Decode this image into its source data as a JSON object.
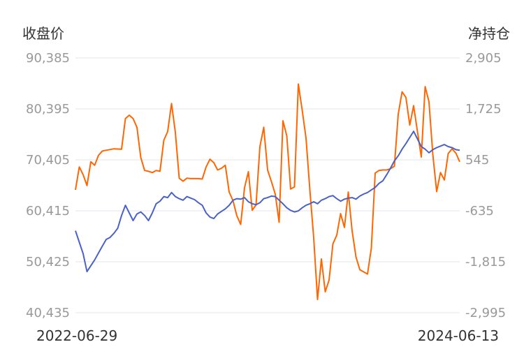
{
  "chart_data": {
    "type": "line",
    "left_axis_title": "收盘价",
    "right_axis_title": "净持仓",
    "left_ticks": [
      "90,385",
      "80,395",
      "70,405",
      "60,415",
      "50,425",
      "40,435"
    ],
    "right_ticks": [
      "2,905",
      "1,725",
      "545",
      "-635",
      "-1,815",
      "-2,995"
    ],
    "x_start_label": "2022-06-29",
    "x_end_label": "2024-06-13",
    "left_ylim": [
      40435,
      90385
    ],
    "right_ylim": [
      -2995,
      2905
    ],
    "grid": true,
    "series": [
      {
        "axis": "left",
        "color": "#4a62c8",
        "x": [
          0.0,
          0.02,
          0.03,
          0.05,
          0.07,
          0.08,
          0.09,
          0.1,
          0.11,
          0.12,
          0.13,
          0.14,
          0.15,
          0.16,
          0.17,
          0.18,
          0.19,
          0.2,
          0.21,
          0.22,
          0.23,
          0.24,
          0.25,
          0.26,
          0.27,
          0.28,
          0.29,
          0.3,
          0.31,
          0.32,
          0.33,
          0.34,
          0.35,
          0.36,
          0.37,
          0.38,
          0.39,
          0.4,
          0.41,
          0.42,
          0.43,
          0.44,
          0.45,
          0.46,
          0.47,
          0.48,
          0.49,
          0.5,
          0.51,
          0.52,
          0.53,
          0.54,
          0.55,
          0.56,
          0.57,
          0.58,
          0.59,
          0.6,
          0.61,
          0.62,
          0.63,
          0.64,
          0.65,
          0.66,
          0.67,
          0.68,
          0.69,
          0.7,
          0.71,
          0.72,
          0.73,
          0.74,
          0.75,
          0.76,
          0.77,
          0.78,
          0.79,
          0.8,
          0.81,
          0.82,
          0.83,
          0.84,
          0.85,
          0.86,
          0.87,
          0.88,
          0.89,
          0.9,
          0.91,
          0.92,
          0.93,
          0.94,
          0.95,
          0.96,
          0.97,
          0.98,
          0.99,
          1.0
        ],
        "y": [
          56500,
          52000,
          48500,
          50800,
          53500,
          54800,
          55200,
          56000,
          57000,
          59500,
          61500,
          60000,
          58500,
          59800,
          60200,
          59500,
          58500,
          60000,
          61800,
          62300,
          63200,
          63000,
          64000,
          63200,
          62800,
          62500,
          63200,
          62900,
          62600,
          62000,
          61500,
          60000,
          59200,
          58900,
          59800,
          60300,
          60800,
          61500,
          62500,
          62800,
          62700,
          63000,
          62200,
          61800,
          61600,
          62000,
          62800,
          63000,
          63300,
          63200,
          62500,
          61800,
          61000,
          60500,
          60200,
          60400,
          61000,
          61500,
          61800,
          62200,
          61800,
          62500,
          62800,
          63200,
          63400,
          62800,
          62300,
          62700,
          62900,
          63000,
          62700,
          63300,
          63700,
          64000,
          64500,
          65000,
          65800,
          66300,
          67500,
          68800,
          70200,
          71200,
          72500,
          73600,
          74800,
          76000,
          74500,
          73000,
          72500,
          71800,
          72400,
          72800,
          73100,
          73400,
          73000,
          72800,
          72400,
          72300
        ]
      },
      {
        "axis": "right",
        "color": "#ff6600",
        "x": [
          0.0,
          0.01,
          0.02,
          0.03,
          0.04,
          0.05,
          0.06,
          0.07,
          0.1,
          0.12,
          0.13,
          0.14,
          0.15,
          0.16,
          0.17,
          0.18,
          0.19,
          0.2,
          0.21,
          0.22,
          0.23,
          0.24,
          0.25,
          0.26,
          0.27,
          0.28,
          0.29,
          0.3,
          0.31,
          0.32,
          0.33,
          0.34,
          0.35,
          0.36,
          0.37,
          0.38,
          0.39,
          0.4,
          0.41,
          0.42,
          0.43,
          0.44,
          0.45,
          0.46,
          0.47,
          0.48,
          0.49,
          0.5,
          0.51,
          0.52,
          0.53,
          0.54,
          0.55,
          0.56,
          0.57,
          0.58,
          0.59,
          0.6,
          0.61,
          0.62,
          0.63,
          0.64,
          0.65,
          0.66,
          0.67,
          0.68,
          0.69,
          0.7,
          0.71,
          0.72,
          0.73,
          0.74,
          0.75,
          0.76,
          0.77,
          0.78,
          0.79,
          0.8,
          0.81,
          0.82,
          0.83,
          0.84,
          0.85,
          0.86,
          0.87,
          0.88,
          0.89,
          0.9,
          0.91,
          0.92,
          0.93,
          0.94,
          0.95,
          0.96,
          0.97,
          0.98,
          0.99,
          1.0
        ],
        "y": [
          -150,
          380,
          200,
          -50,
          500,
          420,
          650,
          750,
          800,
          790,
          1500,
          1580,
          1500,
          1300,
          600,
          300,
          280,
          250,
          300,
          280,
          1000,
          1200,
          1850,
          1180,
          120,
          50,
          120,
          110,
          110,
          110,
          100,
          380,
          560,
          480,
          310,
          350,
          420,
          -200,
          -400,
          -750,
          -950,
          -100,
          270,
          -620,
          -500,
          850,
          1300,
          310,
          40,
          -250,
          -900,
          1450,
          1100,
          -130,
          -80,
          2300,
          1700,
          1050,
          -150,
          -1260,
          -2690,
          -1750,
          -2510,
          -2240,
          -1400,
          -1200,
          -700,
          -1020,
          -200,
          -1100,
          -1700,
          -2000,
          -2050,
          -2100,
          -1500,
          240,
          300,
          310,
          310,
          340,
          400,
          1600,
          2120,
          1990,
          1350,
          1800,
          1200,
          610,
          2240,
          1890,
          670,
          -190,
          250,
          80,
          690,
          800,
          700,
          500
        ]
      }
    ]
  }
}
